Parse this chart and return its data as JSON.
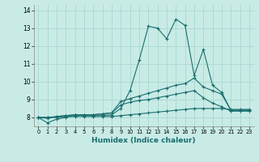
{
  "xlabel": "Humidex (Indice chaleur)",
  "ylabel": "",
  "background_color": "#c8ebe6",
  "grid_color": "#a8d8d0",
  "line_color": "#1a6e6e",
  "xlim": [
    -0.5,
    23.5
  ],
  "ylim": [
    7.5,
    14.3
  ],
  "yticks": [
    8,
    9,
    10,
    11,
    12,
    13,
    14
  ],
  "xticks": [
    0,
    1,
    2,
    3,
    4,
    5,
    6,
    7,
    8,
    9,
    10,
    11,
    12,
    13,
    14,
    15,
    16,
    17,
    18,
    19,
    20,
    21,
    22,
    23
  ],
  "lines": [
    {
      "x": [
        0,
        1,
        2,
        3,
        4,
        5,
        6,
        7,
        8,
        9,
        10,
        11,
        12,
        13,
        14,
        15,
        16,
        17,
        18,
        19,
        20,
        21,
        22,
        23
      ],
      "y": [
        8.0,
        7.7,
        7.9,
        8.0,
        8.1,
        8.1,
        8.1,
        8.1,
        8.15,
        8.5,
        9.5,
        11.2,
        13.1,
        13.0,
        12.4,
        13.5,
        13.15,
        10.35,
        11.8,
        9.8,
        9.4,
        8.4,
        8.4,
        8.4
      ]
    },
    {
      "x": [
        0,
        1,
        2,
        3,
        4,
        5,
        6,
        7,
        8,
        9,
        10,
        11,
        12,
        13,
        14,
        15,
        16,
        17,
        18,
        19,
        20,
        21,
        22,
        23
      ],
      "y": [
        8.0,
        7.95,
        8.05,
        8.1,
        8.15,
        8.15,
        8.15,
        8.2,
        8.25,
        8.9,
        9.05,
        9.2,
        9.35,
        9.5,
        9.65,
        9.8,
        9.9,
        10.2,
        9.7,
        9.5,
        9.3,
        8.4,
        8.4,
        8.4
      ]
    },
    {
      "x": [
        0,
        1,
        2,
        3,
        4,
        5,
        6,
        7,
        8,
        9,
        10,
        11,
        12,
        13,
        14,
        15,
        16,
        17,
        18,
        19,
        20,
        21,
        22,
        23
      ],
      "y": [
        8.0,
        8.0,
        8.05,
        8.1,
        8.15,
        8.15,
        8.15,
        8.2,
        8.25,
        8.7,
        8.85,
        8.95,
        9.0,
        9.1,
        9.2,
        9.3,
        9.4,
        9.5,
        9.1,
        8.8,
        8.6,
        8.35,
        8.35,
        8.35
      ]
    },
    {
      "x": [
        0,
        1,
        2,
        3,
        4,
        5,
        6,
        7,
        8,
        9,
        10,
        11,
        12,
        13,
        14,
        15,
        16,
        17,
        18,
        19,
        20,
        21,
        22,
        23
      ],
      "y": [
        8.0,
        8.0,
        8.0,
        8.05,
        8.05,
        8.05,
        8.05,
        8.05,
        8.05,
        8.1,
        8.15,
        8.2,
        8.25,
        8.3,
        8.35,
        8.4,
        8.45,
        8.5,
        8.5,
        8.5,
        8.5,
        8.45,
        8.45,
        8.45
      ]
    }
  ]
}
